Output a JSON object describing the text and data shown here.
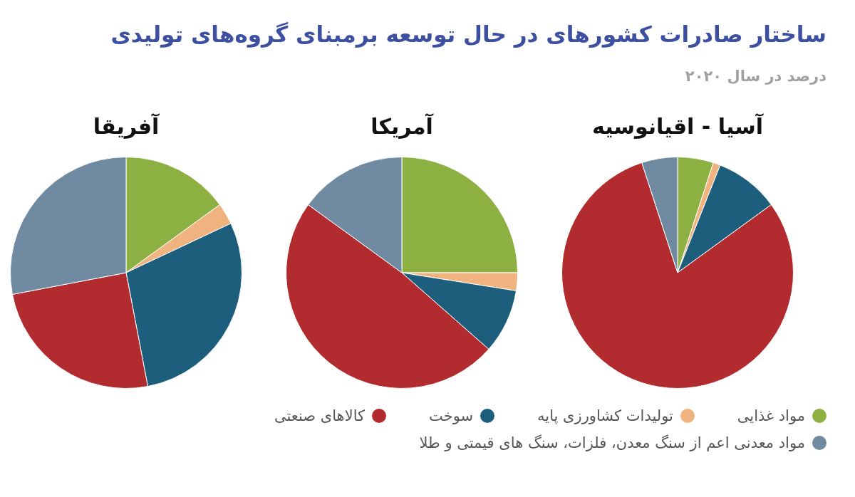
{
  "chart_data": [
    {
      "type": "pie",
      "title": "آسیا - اقیانوسیه",
      "annotations": [
        "ساختار صادرات کشورهای در حال توسعه برمبنای گروه‌های تولیدی",
        "درصد در سال ۲۰۲۰"
      ],
      "categories": [
        "مواد غذایی",
        "تولیدات کشاورزی پایه",
        "سوخت",
        "کالاهای صنعتی",
        "مواد معدنی اعم از سنگ معدن، فلزات، سنگ های قیمتی و طلا"
      ],
      "values": [
        5,
        1,
        9,
        80,
        5
      ],
      "colors": [
        "#8db043",
        "#f0b27f",
        "#1c5e7b",
        "#b22c2f",
        "#6f8aa1"
      ],
      "legend": "bottom"
    },
    {
      "type": "pie",
      "title": "آمریکا",
      "categories": [
        null,
        null,
        null,
        null,
        null
      ],
      "values": [
        25,
        2.5,
        9,
        48.5,
        15
      ],
      "colors": [
        "#8db043",
        "#f0b27f",
        "#1c5e7b",
        "#b22c2f",
        "#6f8aa1"
      ]
    },
    {
      "type": "pie",
      "title": "آفریقا",
      "categories": [
        null,
        null,
        null,
        null,
        null
      ],
      "values": [
        15,
        3,
        29,
        25,
        28
      ],
      "colors": [
        "#8db043",
        "#f0b27f",
        "#1c5e7b",
        "#b22c2f",
        "#6f8aa1"
      ]
    }
  ]
}
